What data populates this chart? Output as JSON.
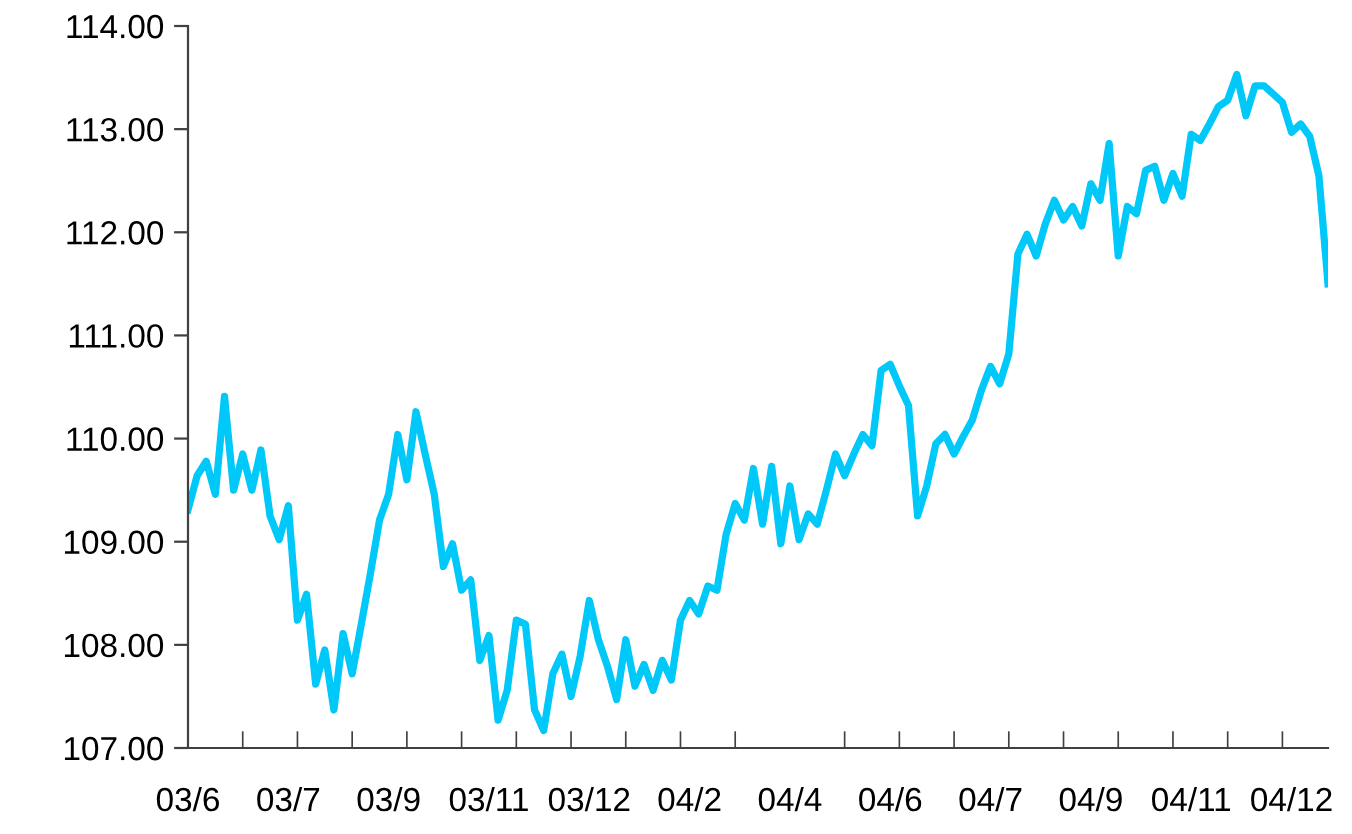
{
  "chart_data": {
    "type": "line",
    "categories": [
      "03/6",
      null,
      null,
      null,
      null,
      null,
      null,
      null,
      null,
      null,
      null,
      "03/7",
      null,
      null,
      null,
      null,
      null,
      null,
      null,
      null,
      null,
      null,
      "03/9",
      null,
      null,
      null,
      null,
      null,
      null,
      null,
      null,
      null,
      null,
      "03/11",
      null,
      null,
      null,
      null,
      null,
      null,
      null,
      null,
      null,
      null,
      "03/12",
      null,
      null,
      null,
      null,
      null,
      null,
      null,
      null,
      null,
      null,
      "04/2",
      null,
      null,
      null,
      null,
      null,
      null,
      null,
      null,
      null,
      null,
      "04/4",
      null,
      null,
      null,
      null,
      null,
      null,
      null,
      null,
      null,
      null,
      "04/6",
      null,
      null,
      null,
      null,
      null,
      null,
      null,
      null,
      null,
      null,
      "04/7",
      null,
      null,
      null,
      null,
      null,
      null,
      null,
      null,
      null,
      null,
      "04/9",
      null,
      null,
      null,
      null,
      null,
      null,
      null,
      null,
      null,
      null,
      "04/11",
      null,
      null,
      null,
      null,
      null,
      null,
      null,
      null,
      null,
      null,
      "04/12",
      null,
      null,
      null,
      null
    ],
    "series": [
      {
        "color": "#00c8f8",
        "values": [
          109.31,
          109.64,
          109.78,
          109.46,
          110.41,
          109.5,
          109.85,
          109.5,
          109.89,
          109.25,
          109.02,
          109.35,
          108.24,
          108.49,
          107.62,
          107.95,
          107.37,
          108.11,
          107.72,
          108.2,
          108.69,
          109.21,
          109.46,
          110.04,
          109.6,
          110.26,
          109.85,
          109.46,
          108.76,
          108.98,
          108.53,
          108.63,
          107.85,
          108.09,
          107.27,
          107.56,
          108.24,
          108.2,
          107.37,
          107.17,
          107.72,
          107.91,
          107.5,
          107.89,
          108.43,
          108.05,
          107.79,
          107.47,
          108.05,
          107.6,
          107.81,
          107.56,
          107.85,
          107.66,
          108.24,
          108.43,
          108.3,
          108.57,
          108.53,
          109.07,
          109.37,
          109.21,
          109.71,
          109.17,
          109.73,
          108.98,
          109.54,
          109.02,
          109.27,
          109.17,
          109.5,
          109.85,
          109.64,
          109.85,
          110.04,
          109.93,
          110.66,
          110.72,
          110.51,
          110.32,
          109.25,
          109.54,
          109.95,
          110.04,
          109.85,
          110.02,
          110.18,
          110.47,
          110.7,
          110.53,
          110.82,
          111.79,
          111.98,
          111.77,
          112.08,
          112.31,
          112.12,
          112.25,
          112.06,
          112.47,
          112.31,
          112.86,
          111.77,
          112.25,
          112.18,
          112.6,
          112.64,
          112.31,
          112.57,
          112.35,
          112.95,
          112.89,
          113.05,
          113.22,
          113.28,
          113.53,
          113.13,
          113.42,
          113.42,
          113.34,
          113.26,
          112.97,
          113.05,
          112.93,
          112.55,
          111.5
        ]
      }
    ],
    "ylim": [
      107,
      114
    ],
    "yticks": [
      {
        "value": 107,
        "label": "107.00"
      },
      {
        "value": 108,
        "label": "108.00"
      },
      {
        "value": 109,
        "label": "109.00"
      },
      {
        "value": 110,
        "label": "110.00"
      },
      {
        "value": 111,
        "label": "111.00"
      },
      {
        "value": 112,
        "label": "112.00"
      },
      {
        "value": 113,
        "label": "113.00"
      },
      {
        "value": 114,
        "label": "114.00"
      }
    ],
    "grid": false,
    "legend": false,
    "marker": "none",
    "line_style": "solid"
  }
}
